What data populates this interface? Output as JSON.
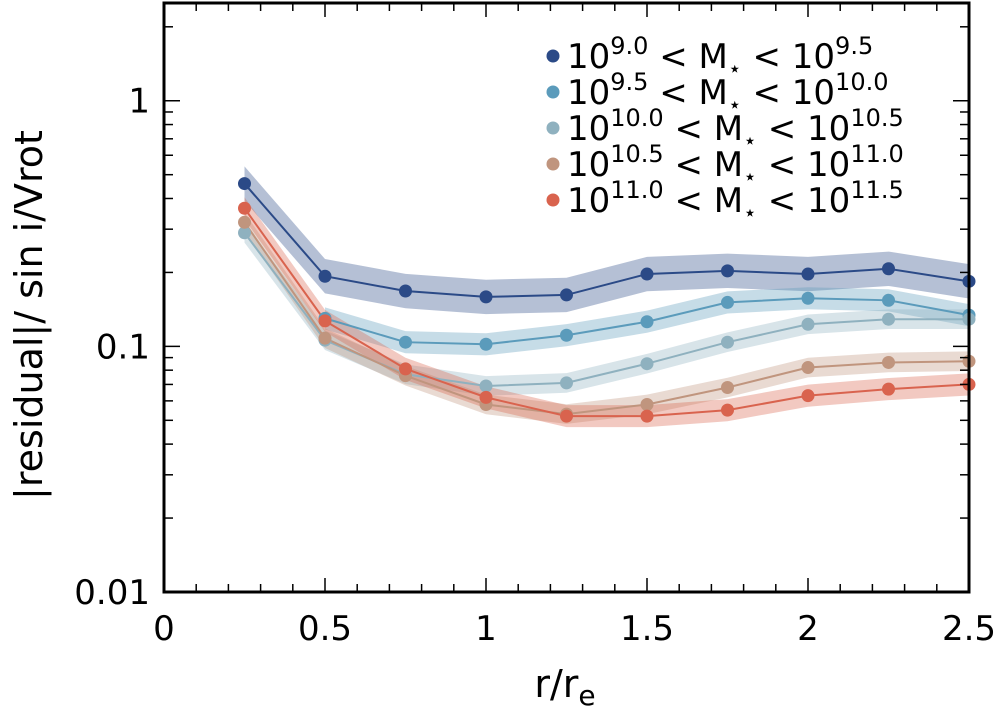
{
  "chart_data": {
    "type": "line",
    "title": "",
    "xlabel": "r/r",
    "xlabel_sub": "e",
    "ylabel": "|residual|/ sin i/Vrot",
    "xlim": [
      0,
      2.5
    ],
    "ylim": [
      0.01,
      2.5
    ],
    "yscale": "log",
    "x_ticks": [
      0,
      0.5,
      1,
      1.5,
      2,
      2.5
    ],
    "x_tick_labels": [
      "0",
      "0.5",
      "1",
      "1.5",
      "2",
      "2.5"
    ],
    "y_ticks": [
      0.01,
      0.1,
      1
    ],
    "y_tick_labels": [
      "0.01",
      "0.1",
      "1"
    ],
    "legend_location": "top-right",
    "x": [
      0.25,
      0.5,
      0.75,
      1.0,
      1.25,
      1.5,
      1.75,
      2.0,
      2.25,
      2.5
    ],
    "series": [
      {
        "name": "10^9.0 < M⋆ < 10^9.5",
        "label_parts": {
          "base1": "10",
          "exp1": "9.0",
          "mid": " < M",
          "star": "⋆",
          "lt": " < ",
          "base2": "10",
          "exp2": "9.5"
        },
        "color": "#2b4a87",
        "band": 0.07,
        "values": [
          0.46,
          0.193,
          0.168,
          0.159,
          0.162,
          0.197,
          0.203,
          0.197,
          0.207,
          0.184
        ]
      },
      {
        "name": "10^9.5 < M⋆ < 10^10.0",
        "label_parts": {
          "base1": "10",
          "exp1": "9.5",
          "mid": " < M",
          "star": "⋆",
          "lt": " < ",
          "base2": "10",
          "exp2": "10.0"
        },
        "color": "#5b9bbb",
        "band": 0.045,
        "values": [
          null,
          0.13,
          0.104,
          0.102,
          0.111,
          0.126,
          0.151,
          0.157,
          0.154,
          0.134
        ]
      },
      {
        "name": "10^10.0 < M⋆ < 10^10.5",
        "label_parts": {
          "base1": "10",
          "exp1": "10.0",
          "mid": " < M",
          "star": "⋆",
          "lt": " < ",
          "base2": "10",
          "exp2": "10.5"
        },
        "color": "#8fb1bf",
        "band": 0.04,
        "values": [
          0.29,
          0.106,
          0.077,
          0.069,
          0.071,
          0.085,
          0.104,
          0.123,
          0.129,
          0.129
        ]
      },
      {
        "name": "10^10.5 < M⋆ < 10^11.0",
        "label_parts": {
          "base1": "10",
          "exp1": "10.5",
          "mid": " < M",
          "star": "⋆",
          "lt": " < ",
          "base2": "10",
          "exp2": "11.0"
        },
        "color": "#c0957e",
        "band": 0.04,
        "values": [
          0.32,
          0.108,
          0.076,
          0.058,
          0.053,
          0.058,
          0.068,
          0.082,
          0.086,
          0.087
        ]
      },
      {
        "name": "10^11.0 < M⋆ < 10^11.5",
        "label_parts": {
          "base1": "10",
          "exp1": "11.0",
          "mid": " < M",
          "star": "⋆",
          "lt": " < ",
          "base2": "10",
          "exp2": "11.5"
        },
        "color": "#d9634e",
        "band": 0.045,
        "values": [
          0.365,
          0.127,
          0.081,
          0.062,
          0.052,
          0.052,
          0.055,
          0.063,
          0.067,
          0.07
        ]
      }
    ]
  }
}
